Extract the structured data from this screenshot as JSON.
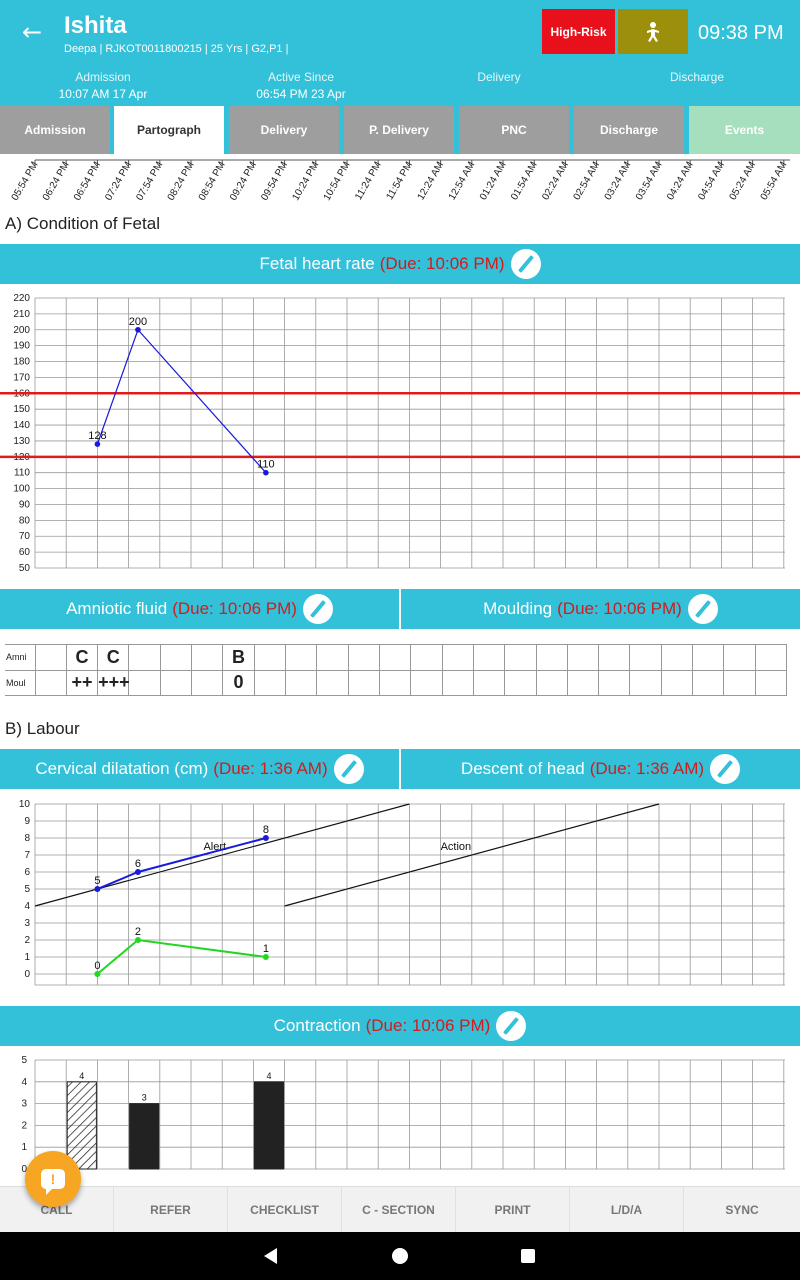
{
  "header": {
    "patient_name": "Ishita",
    "patient_info": "Deepa | RJKOT0011800215 | 25 Yrs | G2,P1 |",
    "risk_label": "High-Risk",
    "clock": "09:38 PM",
    "back_icon": "arrow-left-icon",
    "baby_icon": "baby-icon",
    "accent": "#33c1d9",
    "risk_color": "#e8101a"
  },
  "status": [
    {
      "label": "Admission",
      "value": "10:07 AM 17 Apr"
    },
    {
      "label": "Active Since",
      "value": "06:54 PM 23 Apr"
    },
    {
      "label": "Delivery",
      "value": ""
    },
    {
      "label": "Discharge",
      "value": ""
    }
  ],
  "tabs": [
    "Admission",
    "Partograph",
    "Delivery",
    "P. Delivery",
    "PNC",
    "Discharge",
    "Events"
  ],
  "active_tab": "Partograph",
  "time_axis": [
    "05:54 PM",
    "06:24 PM",
    "06:54 PM",
    "07:24 PM",
    "07:54 PM",
    "08:24 PM",
    "08:54 PM",
    "09:24 PM",
    "09:54 PM",
    "10:24 PM",
    "10:54 PM",
    "11:24 PM",
    "11:54 PM",
    "12:24 AM",
    "12:54 AM",
    "01:24 AM",
    "01:54 AM",
    "02:24 AM",
    "02:54 AM",
    "03:24 AM",
    "03:54 AM",
    "04:24 AM",
    "04:54 AM",
    "05:24 AM",
    "05:54 AM"
  ],
  "sections": {
    "fetal": "A) Condition of Fetal",
    "labour": "B) Labour"
  },
  "bars": {
    "fhr": {
      "title": "Fetal heart rate",
      "due": "(Due: 10:06 PM)"
    },
    "amniotic": {
      "title": "Amniotic fluid",
      "due": "(Due: 10:06 PM)"
    },
    "moulding": {
      "title": "Moulding",
      "due": "(Due: 10:06 PM)"
    },
    "cervical": {
      "title": "Cervical dilatation (cm)",
      "due": "(Due: 1:36 AM)"
    },
    "descent": {
      "title": "Descent of head",
      "due": "(Due: 1:36 AM)"
    },
    "contraction": {
      "title": "Contraction",
      "due": "(Due: 10:06 PM)"
    }
  },
  "amnio_table": {
    "row_labels": [
      "Amni",
      "Moul"
    ],
    "amni": [
      "",
      "C",
      "C",
      "",
      "",
      "",
      "B"
    ],
    "moul": [
      "",
      "++",
      "+++",
      "",
      "",
      "",
      "0"
    ]
  },
  "chart_data": [
    {
      "type": "line",
      "ylim": [
        50,
        220
      ],
      "yticks": [
        50,
        60,
        70,
        80,
        90,
        100,
        110,
        120,
        130,
        140,
        150,
        160,
        170,
        180,
        190,
        200,
        210,
        220
      ],
      "series": [
        {
          "x": [
            2,
            3.3,
            7.4
          ],
          "values": [
            128,
            200,
            110
          ],
          "color": "#1a1ad9"
        }
      ],
      "reference_lines": [
        120,
        160
      ],
      "reference_color": "#e11b1b"
    },
    {
      "type": "line",
      "ylim": [
        0,
        10
      ],
      "yticks": [
        0,
        1,
        2,
        3,
        4,
        5,
        6,
        7,
        8,
        9,
        10
      ],
      "annotations": [
        "Alert",
        "Action"
      ],
      "series": [
        {
          "x": [
            2,
            3.3,
            7.4
          ],
          "values": [
            5,
            6,
            8
          ],
          "color": "#1a1ad9"
        },
        {
          "x": [
            2,
            3.3,
            7.4
          ],
          "values": [
            0,
            2,
            1
          ],
          "color": "#22d622"
        }
      ]
    },
    {
      "type": "bar",
      "ylim": [
        0,
        5
      ],
      "yticks": [
        0,
        1,
        2,
        3,
        4,
        5
      ],
      "bars": [
        {
          "x": 1,
          "value": 4,
          "pattern": "hatched"
        },
        {
          "x": 3,
          "value": 3,
          "pattern": "solid"
        },
        {
          "x": 7,
          "value": 4,
          "pattern": "solid"
        }
      ]
    }
  ],
  "bottom_nav": [
    "CALL",
    "REFER",
    "CHECKLIST",
    "C - SECTION",
    "PRINT",
    "L/D/A",
    "SYNC"
  ],
  "fab_icon": "chat-alert-icon",
  "system_nav": [
    "back-icon",
    "home-icon",
    "recents-icon"
  ]
}
